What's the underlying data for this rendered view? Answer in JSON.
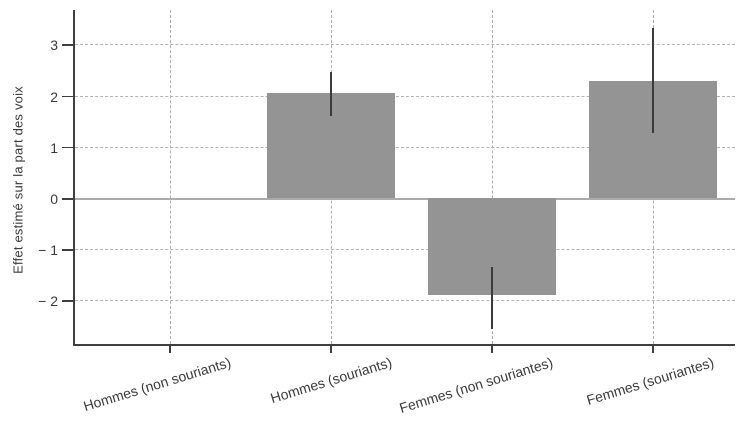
{
  "figure": {
    "background": "#ffffff"
  },
  "chart_data": {
    "type": "bar",
    "title": "",
    "xlabel": "",
    "ylabel": "Effet estimé sur la part des voix",
    "categories": [
      "Hommes (non souriants)",
      "Hommes (souriants)",
      "Femmes (non souriantes)",
      "Femmes (souriantes)"
    ],
    "values": [
      0,
      2.05,
      -1.9,
      2.28
    ],
    "error_bars": [
      {
        "low": null,
        "high": null
      },
      {
        "low": 1.6,
        "high": 2.45
      },
      {
        "low": -2.55,
        "high": -1.35
      },
      {
        "low": 1.27,
        "high": 3.32
      }
    ],
    "yticks": [
      3,
      2,
      1,
      0,
      -1,
      -2
    ],
    "ytick_labels": [
      "3",
      "2",
      "1",
      "0",
      "− 1",
      "− 2"
    ],
    "ylim": [
      -2.85,
      3.67
    ],
    "grid": true,
    "legend": null,
    "colors": {
      "bar": "#949494",
      "error_bar": "#3b3b3b",
      "axis": "#3f3f3f",
      "gridline": "#b4b4b4",
      "zero_line": "#ababab",
      "text": "#3a3a3a"
    }
  }
}
